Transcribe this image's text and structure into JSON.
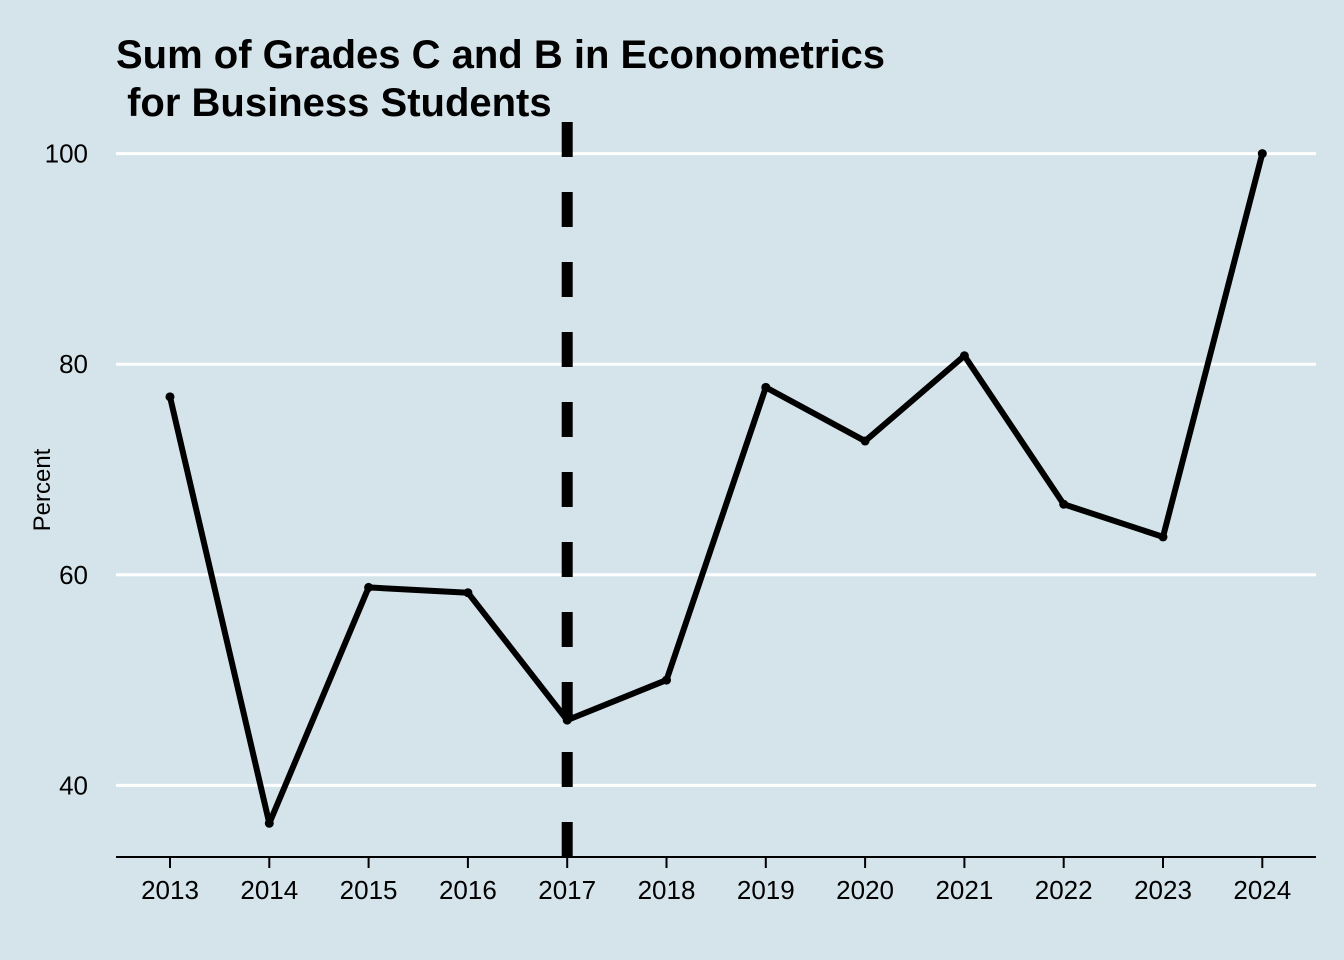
{
  "chart_data": {
    "type": "line",
    "title_lines": [
      "Sum of Grades C and B in Econometrics",
      " for Business Students"
    ],
    "xlabel": "",
    "ylabel": "Percent",
    "x": [
      "2013",
      "2014",
      "2015",
      "2016",
      "2017",
      "2018",
      "2019",
      "2020",
      "2021",
      "2022",
      "2023",
      "2024"
    ],
    "series": [
      {
        "values": [
          76.9,
          36.4,
          58.8,
          58.3,
          46.2,
          50.0,
          77.8,
          72.7,
          80.8,
          66.7,
          63.6,
          100.0
        ]
      }
    ],
    "y_ticks": [
      40,
      60,
      80,
      100
    ],
    "ylim": [
      33.2,
      103.0
    ],
    "reference_line": {
      "x": "2017",
      "style": "dashed"
    },
    "grid": "horizontal",
    "legend": "none",
    "colors": {
      "background": "#d5e4eb",
      "line": "#000000",
      "grid": "#ffffff"
    }
  }
}
